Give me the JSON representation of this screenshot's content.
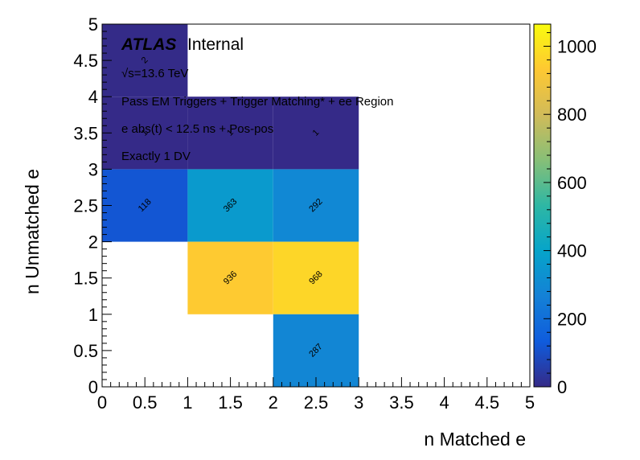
{
  "chart_data": {
    "type": "heatmap",
    "xlabel": "n Matched e",
    "ylabel": "n Unmatched e",
    "xlim": [
      0,
      5
    ],
    "ylim": [
      0,
      5
    ],
    "x_ticks": [
      "0",
      "0.5",
      "1",
      "1.5",
      "2",
      "2.5",
      "3",
      "3.5",
      "4",
      "4.5",
      "5"
    ],
    "y_ticks": [
      "0",
      "0.5",
      "1",
      "1.5",
      "2",
      "2.5",
      "3",
      "3.5",
      "4",
      "4.5",
      "5"
    ],
    "z_range": [
      0,
      1065
    ],
    "colorbar_ticks": [
      "0",
      "200",
      "400",
      "600",
      "800",
      "1000"
    ],
    "colorscale": [
      "#352a87",
      "#0f5cdd",
      "#1481d6",
      "#06a4ca",
      "#2eb7a4",
      "#87bf77",
      "#d1bb59",
      "#fec832",
      "#f9fb0e"
    ],
    "cells": [
      {
        "x": 0.5,
        "y": 2.5,
        "value": 118,
        "label": "118"
      },
      {
        "x": 1.5,
        "y": 2.5,
        "value": 363,
        "label": "363"
      },
      {
        "x": 2.5,
        "y": 2.5,
        "value": 292,
        "label": "292"
      },
      {
        "x": 1.5,
        "y": 1.5,
        "value": 936,
        "label": "936"
      },
      {
        "x": 2.5,
        "y": 1.5,
        "value": 968,
        "label": "968"
      },
      {
        "x": 2.5,
        "y": 0.5,
        "value": 287,
        "label": "287"
      },
      {
        "x": 0.5,
        "y": 4.5,
        "value": 2,
        "label": "2"
      },
      {
        "x": 0.5,
        "y": 3.5,
        "value": 1,
        "label": "1"
      },
      {
        "x": 1.5,
        "y": 3.5,
        "value": 1,
        "label": "1"
      },
      {
        "x": 2.5,
        "y": 3.5,
        "value": 1,
        "label": "1"
      }
    ],
    "annotations": {
      "atlas": "ATLAS",
      "internal": "Internal",
      "energy": "√s=13.6 TeV",
      "line1": "Pass EM Triggers + Trigger Matching* + ee Region",
      "line2": "e abs(t) < 12.5 ns + Pos-pos",
      "line3": "Exactly 1 DV"
    }
  }
}
